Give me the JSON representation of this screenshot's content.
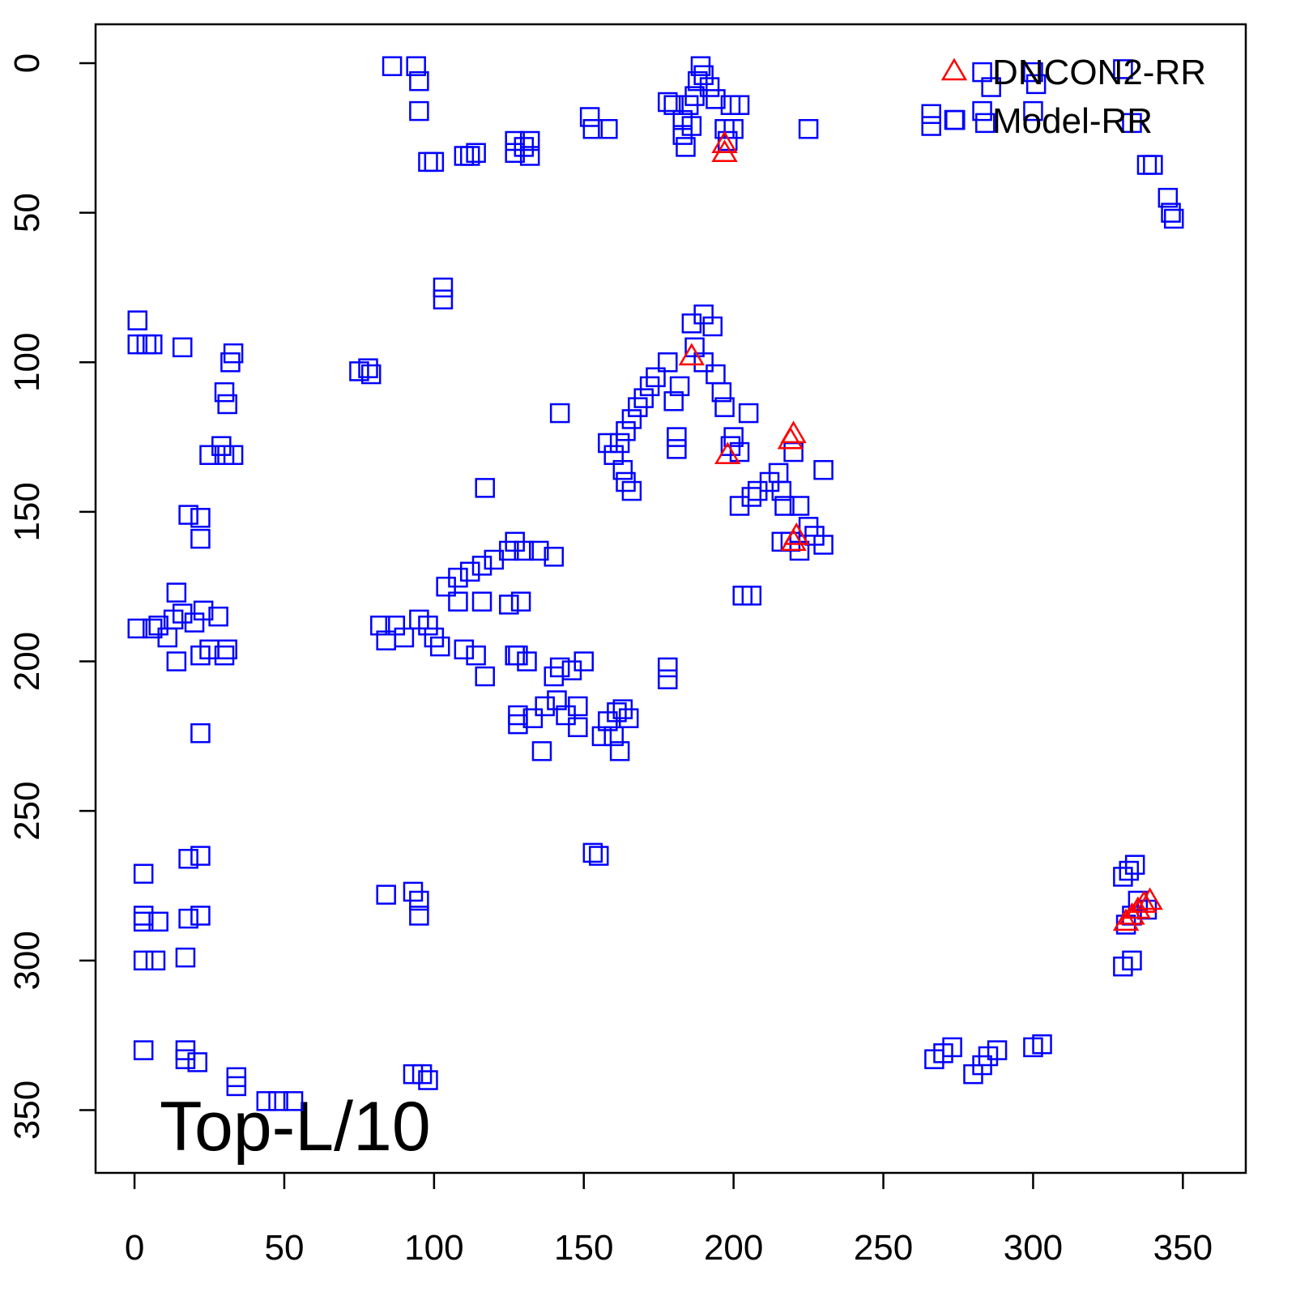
{
  "chart_data": {
    "type": "scatter",
    "annotation": "Top-L/10",
    "xlim": [
      -13,
      371
    ],
    "ylim": [
      371,
      -13
    ],
    "xticks": [
      0,
      50,
      100,
      150,
      200,
      250,
      300,
      350
    ],
    "yticks": [
      0,
      50,
      100,
      150,
      200,
      250,
      300,
      350
    ],
    "legend": "top-right",
    "series": [
      {
        "name": "DNCON2-RR",
        "color": "#ff0000",
        "marker": "triangle",
        "x": [
          197,
          197,
          186,
          198,
          219,
          220,
          221,
          220,
          331,
          333,
          335,
          337,
          339
        ],
        "values": [
          27,
          30,
          98,
          131,
          126,
          124,
          158,
          160,
          287,
          285,
          283,
          281,
          280
        ]
      },
      {
        "name": "Model-RR",
        "color": "#0000ff",
        "marker": "square",
        "x": [
          86,
          94,
          95,
          95,
          98,
          100,
          110,
          112,
          114,
          127,
          127,
          130,
          132,
          132,
          152,
          153,
          158,
          178,
          180,
          183,
          183,
          184,
          185,
          186,
          187,
          188,
          189,
          190,
          192,
          194,
          197,
          198,
          200,
          199,
          202,
          225,
          266,
          266,
          274,
          283,
          283,
          284,
          286,
          300,
          300,
          301,
          330,
          333,
          338,
          340,
          345,
          346,
          347,
          1,
          1,
          4,
          6,
          16,
          33,
          32,
          30,
          31,
          29,
          25,
          30,
          33,
          18,
          22,
          22,
          75,
          78,
          79,
          103,
          103,
          142,
          117,
          178,
          174,
          172,
          170,
          168,
          166,
          164,
          162,
          160,
          163,
          164,
          166,
          158,
          180,
          182,
          181,
          181,
          186,
          190,
          193,
          187,
          190,
          194,
          196,
          197,
          200,
          205,
          199,
          202,
          206,
          202,
          208,
          212,
          215,
          216,
          217,
          220,
          222,
          225,
          227,
          219,
          216,
          222,
          230,
          230,
          203,
          206,
          1,
          6,
          8,
          11,
          13,
          14,
          16,
          14,
          20,
          23,
          28,
          22,
          25,
          30,
          31,
          22,
          82,
          84,
          87,
          90,
          95,
          98,
          100,
          102,
          110,
          114,
          117,
          116,
          108,
          104,
          108,
          112,
          116,
          120,
          125,
          127,
          130,
          135,
          140,
          128,
          131,
          127,
          125,
          129,
          140,
          142,
          146,
          150,
          141,
          144,
          137,
          148,
          148,
          128,
          128,
          133,
          136,
          156,
          158,
          161,
          163,
          165,
          160,
          162,
          178,
          178,
          153,
          155,
          3,
          3,
          3,
          8,
          3,
          7,
          17,
          18,
          22,
          18,
          22,
          3,
          17,
          17,
          21,
          34,
          34,
          44,
          48,
          53,
          84,
          93,
          95,
          95,
          93,
          96,
          98,
          267,
          270,
          273,
          280,
          283,
          285,
          288,
          300,
          303,
          330,
          332,
          334,
          335,
          333,
          331,
          330,
          333,
          338
        ],
        "values": [
          1,
          1,
          6,
          16,
          33,
          33,
          31,
          31,
          30,
          26,
          30,
          28,
          26,
          31,
          18,
          22,
          22,
          13,
          14,
          19,
          24,
          28,
          14,
          21,
          11,
          6,
          1,
          4,
          8,
          12,
          22,
          26,
          22,
          14,
          14,
          22,
          17,
          21,
          19,
          3,
          16,
          20,
          8,
          3,
          16,
          7,
          2,
          20,
          34,
          34,
          45,
          50,
          52,
          86,
          94,
          94,
          94,
          95,
          97,
          100,
          110,
          114,
          128,
          131,
          131,
          131,
          151,
          152,
          159,
          103,
          102,
          104,
          75,
          79,
          117,
          142,
          100,
          105,
          108,
          112,
          115,
          119,
          123,
          127,
          131,
          136,
          140,
          143,
          127,
          113,
          108,
          125,
          129,
          87,
          84,
          88,
          95,
          100,
          104,
          110,
          115,
          125,
          117,
          128,
          130,
          145,
          148,
          143,
          140,
          137,
          143,
          148,
          130,
          148,
          155,
          158,
          160,
          160,
          163,
          161,
          136,
          178,
          178,
          189,
          189,
          188,
          192,
          186,
          177,
          184,
          200,
          187,
          183,
          185,
          198,
          196,
          198,
          196,
          224,
          188,
          193,
          188,
          192,
          186,
          188,
          192,
          195,
          196,
          198,
          205,
          180,
          180,
          175,
          172,
          170,
          168,
          166,
          163,
          160,
          163,
          163,
          165,
          198,
          200,
          198,
          181,
          180,
          205,
          202,
          203,
          200,
          213,
          218,
          215,
          215,
          222,
          218,
          221,
          219,
          230,
          225,
          220,
          217,
          216,
          219,
          225,
          230,
          202,
          206,
          264,
          265,
          271,
          285,
          287,
          287,
          300,
          300,
          299,
          286,
          285,
          266,
          265,
          330,
          330,
          333,
          334,
          339,
          342,
          347,
          347,
          347,
          278,
          277,
          280,
          285,
          338,
          338,
          340,
          333,
          331,
          329,
          338,
          335,
          332,
          330,
          329,
          328,
          272,
          270,
          268,
          280,
          285,
          288,
          302,
          300,
          283
        ]
      }
    ]
  }
}
